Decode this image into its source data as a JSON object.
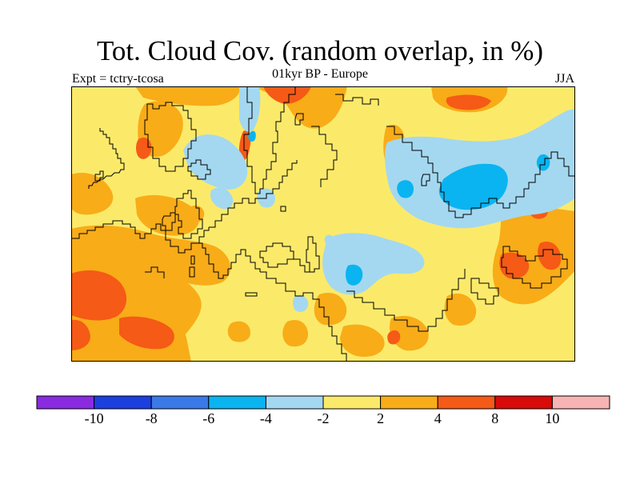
{
  "title": "Tot. Cloud Cov. (random overlap, in %)",
  "subtitle": "01kyr BP - Europe",
  "experiment_label": "Expt = tctry-tcosa",
  "season": "JJA",
  "colorbar": {
    "colors": [
      "#8a2be2",
      "#1c3fe0",
      "#3a7ae8",
      "#0ab4f0",
      "#a4d8f0",
      "#fbea6a",
      "#f8ac18",
      "#f55a16",
      "#d80a0a",
      "#f8b4b4"
    ],
    "tick_labels": [
      "-10",
      "-8",
      "-6",
      "-4",
      "-2",
      "2",
      "4",
      "8",
      "10"
    ]
  },
  "map": {
    "background_color": "#fbea6a",
    "coastline_color": "#000000",
    "frame_color": "#000000"
  }
}
